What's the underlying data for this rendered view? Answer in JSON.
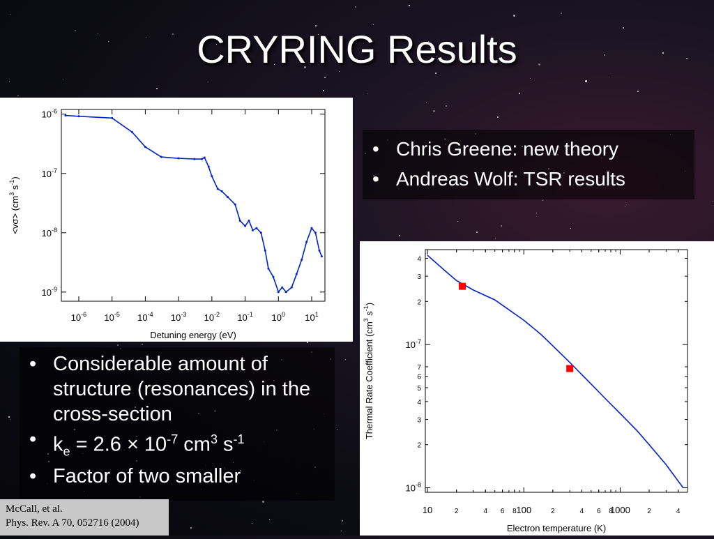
{
  "title": "CRYRING Results",
  "bullets_top": [
    "Chris Greene: new theory",
    "Andreas Wolf: TSR results"
  ],
  "bullets_bottom": {
    "b1": "Considerable amount of structure (resonances) in the cross-section",
    "b2": {
      "k": "k",
      "k_sub": "e",
      "eq": " = 2.6 ",
      "times": "×",
      "ten": " 10",
      "exp1": "-7",
      "cm": " cm",
      "exp2": "3",
      "s": " s",
      "exp3": "-1"
    },
    "b3": "Factor of two smaller"
  },
  "citation": {
    "line1": "McCall, et al.",
    "line2": "Phys. Rev. A 70, 052716 (2004)"
  },
  "colors": {
    "curve": "#0022cc",
    "marker": "#ff0000",
    "text": "#ffffff"
  },
  "chart_data": [
    {
      "type": "line",
      "xlabel": "Detuning energy (eV)",
      "ylabel": "<vσ> (cm3 s-1)",
      "xscale": "log",
      "yscale": "log",
      "xlim": [
        3e-07,
        25
      ],
      "ylim": [
        7e-10,
        1.2e-06
      ],
      "x_ticks": [
        {
          "v": 1e-06,
          "b": "10",
          "e": "-6"
        },
        {
          "v": 1e-05,
          "b": "10",
          "e": "-5"
        },
        {
          "v": 0.0001,
          "b": "10",
          "e": "-4"
        },
        {
          "v": 0.001,
          "b": "10",
          "e": "-3"
        },
        {
          "v": 0.01,
          "b": "10",
          "e": "-2"
        },
        {
          "v": 0.1,
          "b": "10",
          "e": "-1"
        },
        {
          "v": 1,
          "b": "10",
          "e": "0"
        },
        {
          "v": 10,
          "b": "10",
          "e": "1"
        }
      ],
      "y_ticks": [
        {
          "v": 1e-06,
          "b": "10",
          "e": "-6"
        },
        {
          "v": 1e-07,
          "b": "10",
          "e": "-7"
        },
        {
          "v": 1e-08,
          "b": "10",
          "e": "-8"
        },
        {
          "v": 1e-09,
          "b": "10",
          "e": "-9"
        }
      ],
      "series": [
        {
          "x": [
            4e-07,
            1e-06,
            1e-05,
            4e-05,
            0.0001,
            0.0003,
            0.001,
            0.003,
            0.005,
            0.006,
            0.008,
            0.01,
            0.015,
            0.02,
            0.03,
            0.05,
            0.07,
            0.1,
            0.13,
            0.17,
            0.22,
            0.3,
            0.4,
            0.5,
            0.7,
            1,
            1.3,
            1.7,
            2.5,
            3.5,
            5,
            7,
            10,
            13,
            17,
            20
          ],
          "y": [
            9.5e-07,
            9.2e-07,
            8.6e-07,
            5e-07,
            2.8e-07,
            1.9e-07,
            1.8e-07,
            1.75e-07,
            1.75e-07,
            1.85e-07,
            1.3e-07,
            9e-08,
            5.5e-08,
            5e-08,
            4e-08,
            3e-08,
            1.6e-08,
            1.3e-08,
            1.6e-08,
            1.1e-08,
            1.2e-08,
            1e-08,
            5e-09,
            2.5e-09,
            1.8e-09,
            1e-09,
            1.2e-09,
            1e-09,
            1.2e-09,
            2e-09,
            3.5e-09,
            7e-09,
            1.2e-08,
            1e-08,
            5e-09,
            4e-09
          ]
        }
      ]
    },
    {
      "type": "line",
      "xlabel": "Electron temperature (K)",
      "ylabel": "Thermal Rate Coefficient (cm3 s-1)",
      "xscale": "log",
      "yscale": "log",
      "xlim": [
        9.5,
        5000
      ],
      "ylim": [
        9.3e-09,
        4.6e-07
      ],
      "x_ticks": [
        {
          "v": 10,
          "l": "10",
          "major": true
        },
        {
          "v": 20,
          "l": "2"
        },
        {
          "v": 40,
          "l": "4"
        },
        {
          "v": 60,
          "l": "6"
        },
        {
          "v": 80,
          "l": "8"
        },
        {
          "v": 100,
          "l": "100",
          "major": true
        },
        {
          "v": 200,
          "l": "2"
        },
        {
          "v": 400,
          "l": "4"
        },
        {
          "v": 600,
          "l": "6"
        },
        {
          "v": 800,
          "l": "8"
        },
        {
          "v": 1000,
          "l": "1000",
          "major": true
        },
        {
          "v": 2000,
          "l": "2"
        },
        {
          "v": 4000,
          "l": "4"
        }
      ],
      "y_ticks": [
        {
          "v": 4e-07,
          "l": "4"
        },
        {
          "v": 3e-07,
          "l": "3"
        },
        {
          "v": 2e-07,
          "l": "2"
        },
        {
          "v": 1e-07,
          "b": "10",
          "e": "-7",
          "major": true
        },
        {
          "v": 7e-08,
          "l": "7"
        },
        {
          "v": 6e-08,
          "l": "6"
        },
        {
          "v": 5e-08,
          "l": "5"
        },
        {
          "v": 4e-08,
          "l": "4"
        },
        {
          "v": 3e-08,
          "l": "3"
        },
        {
          "v": 2e-08,
          "l": "2"
        },
        {
          "v": 1e-08,
          "b": "10",
          "e": "-8",
          "major": true
        }
      ],
      "series": [
        {
          "x": [
            10,
            15,
            20,
            30,
            50,
            70,
            100,
            150,
            200,
            300,
            500,
            700,
            1000,
            1500,
            2000,
            3000,
            4500
          ],
          "y": [
            4.2e-07,
            3.3e-07,
            2.8e-07,
            2.4e-07,
            2.05e-07,
            1.75e-07,
            1.48e-07,
            1.18e-07,
            9.8e-08,
            7.5e-08,
            5.3e-08,
            4.2e-08,
            3.3e-08,
            2.5e-08,
            2e-08,
            1.45e-08,
            1e-08
          ]
        }
      ],
      "markers": [
        {
          "x": 23,
          "y": 2.55e-07
        },
        {
          "x": 300,
          "y": 6.8e-08
        }
      ]
    }
  ]
}
